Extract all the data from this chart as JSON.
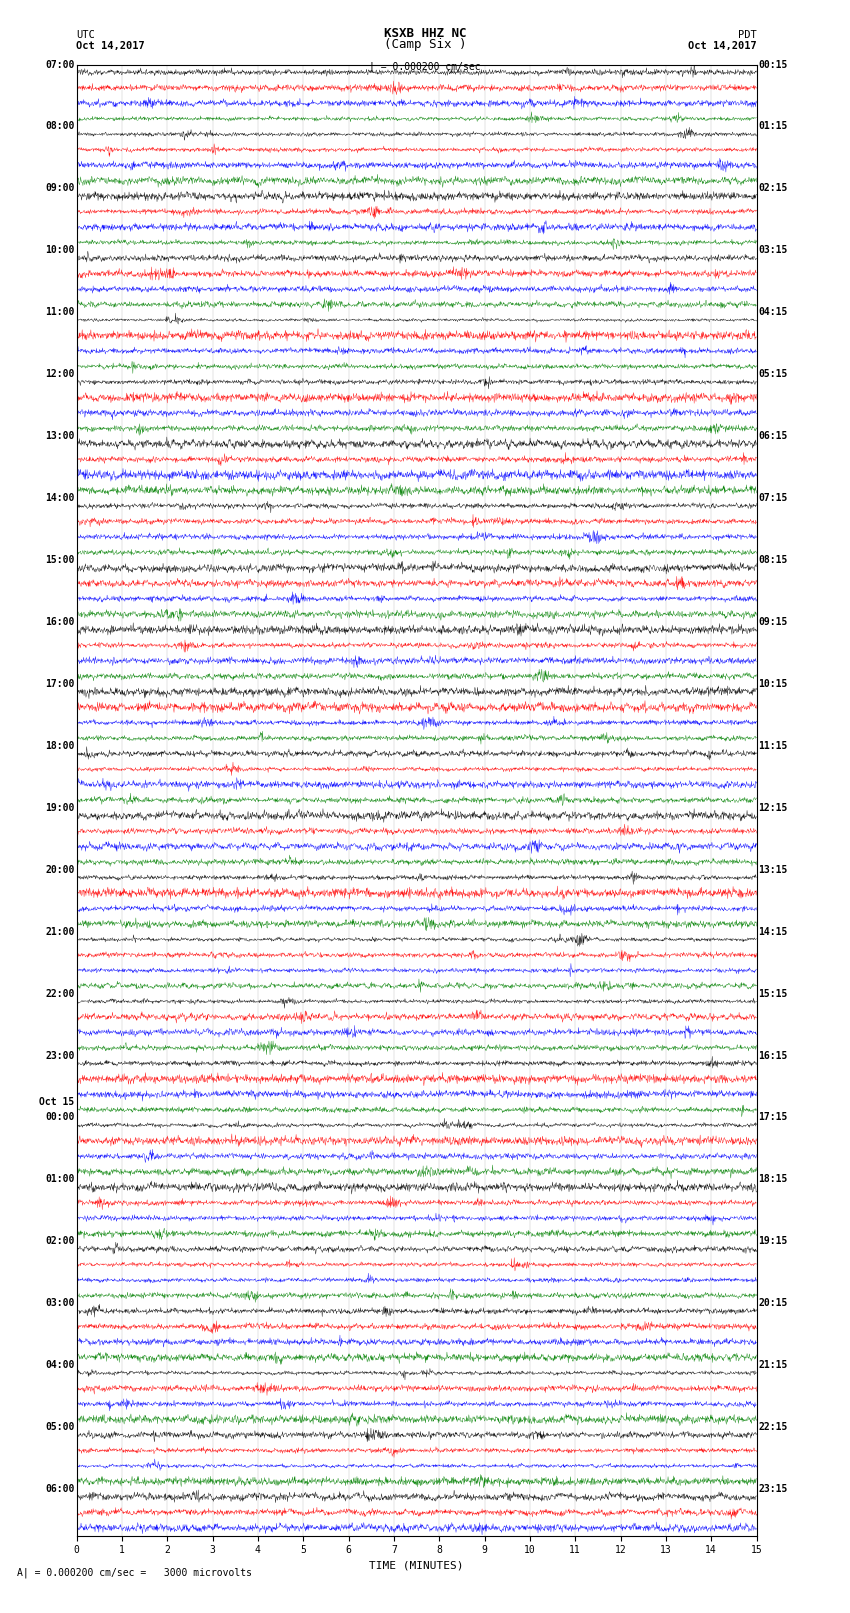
{
  "title_line1": "KSXB HHZ NC",
  "title_line2": "(Camp Six )",
  "label_left_top": "UTC",
  "label_left_date": "Oct 14,2017",
  "label_right_top": "PDT",
  "label_right_date": "Oct 14,2017",
  "scale_label": "| = 0.000200 cm/sec",
  "bottom_scale_text": "A| = 0.000200 cm/sec =   3000 microvolts",
  "xlabel": "TIME (MINUTES)",
  "colors": [
    "black",
    "red",
    "blue",
    "green"
  ],
  "left_labels": [
    [
      "07:00",
      0
    ],
    [
      "08:00",
      4
    ],
    [
      "09:00",
      8
    ],
    [
      "10:00",
      12
    ],
    [
      "11:00",
      16
    ],
    [
      "12:00",
      20
    ],
    [
      "13:00",
      24
    ],
    [
      "14:00",
      28
    ],
    [
      "15:00",
      32
    ],
    [
      "16:00",
      36
    ],
    [
      "17:00",
      40
    ],
    [
      "18:00",
      44
    ],
    [
      "19:00",
      48
    ],
    [
      "20:00",
      52
    ],
    [
      "21:00",
      56
    ],
    [
      "22:00",
      60
    ],
    [
      "23:00",
      64
    ],
    [
      "Oct 15",
      67
    ],
    [
      "00:00",
      68
    ],
    [
      "01:00",
      72
    ],
    [
      "02:00",
      76
    ],
    [
      "03:00",
      80
    ],
    [
      "04:00",
      84
    ],
    [
      "05:00",
      88
    ],
    [
      "06:00",
      92
    ]
  ],
  "right_labels": [
    [
      "00:15",
      0
    ],
    [
      "01:15",
      4
    ],
    [
      "02:15",
      8
    ],
    [
      "03:15",
      12
    ],
    [
      "04:15",
      16
    ],
    [
      "05:15",
      20
    ],
    [
      "06:15",
      24
    ],
    [
      "07:15",
      28
    ],
    [
      "08:15",
      32
    ],
    [
      "09:15",
      36
    ],
    [
      "10:15",
      40
    ],
    [
      "11:15",
      44
    ],
    [
      "12:15",
      48
    ],
    [
      "13:15",
      52
    ],
    [
      "14:15",
      56
    ],
    [
      "15:15",
      60
    ],
    [
      "16:15",
      64
    ],
    [
      "17:15",
      68
    ],
    [
      "18:15",
      72
    ],
    [
      "19:15",
      76
    ],
    [
      "20:15",
      80
    ],
    [
      "21:15",
      84
    ],
    [
      "22:15",
      88
    ],
    [
      "23:15",
      92
    ]
  ],
  "n_rows": 95,
  "n_cols": 1800,
  "background_color": "#ffffff",
  "fig_width": 8.5,
  "fig_height": 16.13,
  "dpi": 100
}
